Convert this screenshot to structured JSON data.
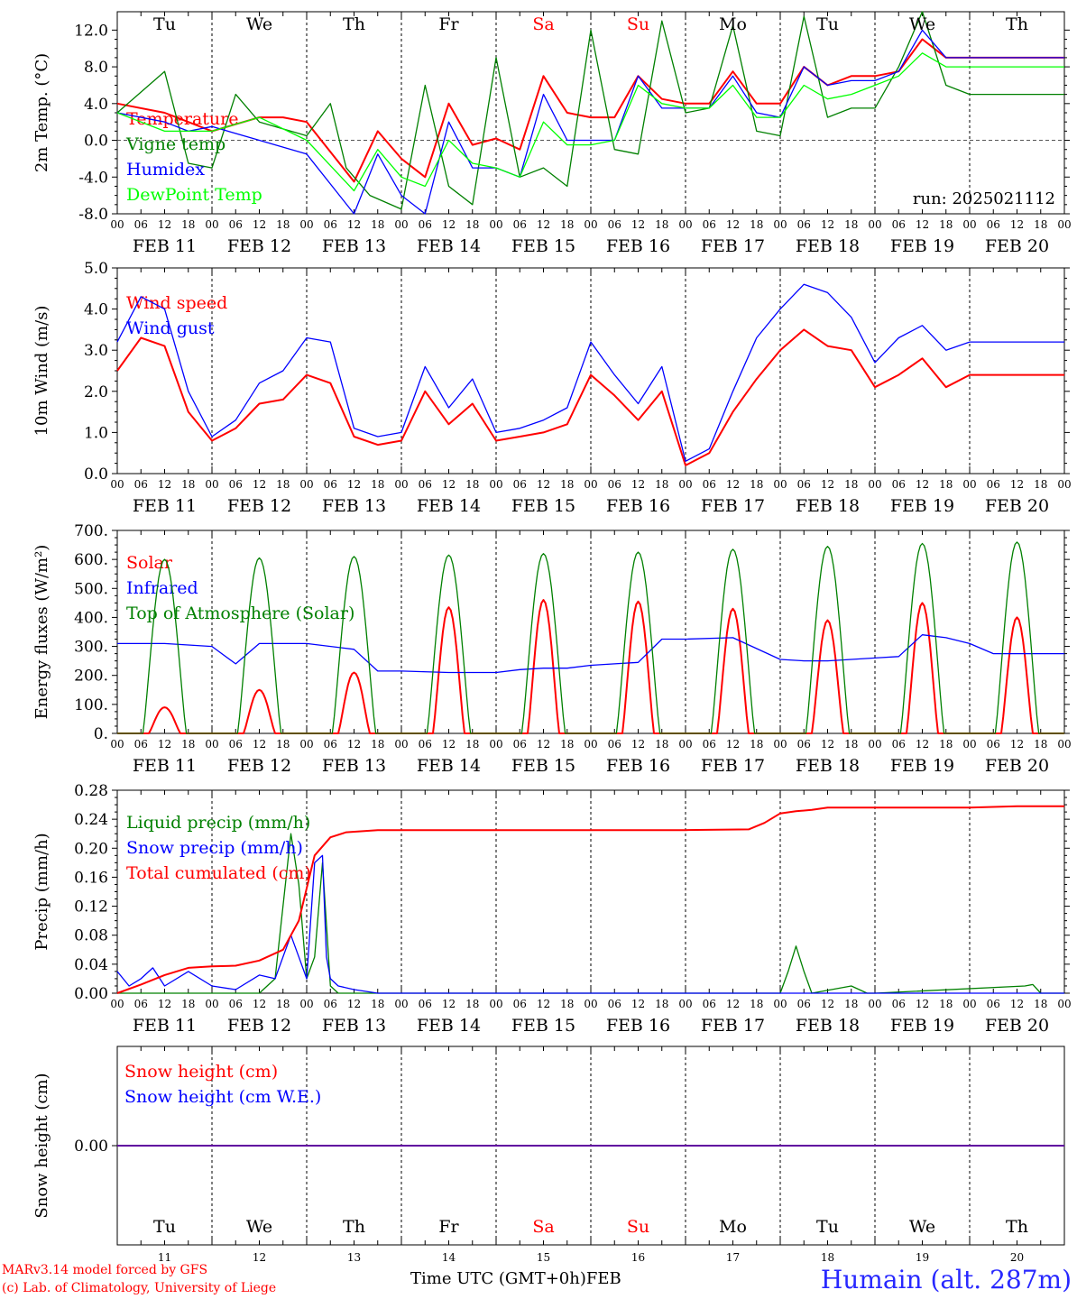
{
  "run_label": "run: 2025021112",
  "x_axis_title": "Time UTC (GMT+0h)",
  "x_axis_month": "FEB",
  "station_label": "Humain (alt. 287m)",
  "credits": [
    "MARv3.14 model forced by GFS",
    "(c) Lab. of Climatology, University of Liege"
  ],
  "days": {
    "weekday": [
      "Tu",
      "We",
      "Th",
      "Fr",
      "Sa",
      "Su",
      "Mo",
      "Tu",
      "We",
      "Th"
    ],
    "weekend_flags": [
      false,
      false,
      false,
      false,
      true,
      true,
      false,
      false,
      false,
      false
    ],
    "date_labels": [
      "FEB 11",
      "FEB 12",
      "FEB 13",
      "FEB 14",
      "FEB 15",
      "FEB 16",
      "FEB 17",
      "FEB 18",
      "FEB 19",
      "FEB 20"
    ],
    "day_numbers": [
      "11",
      "12",
      "13",
      "14",
      "15",
      "16",
      "17",
      "18",
      "19",
      "20"
    ],
    "hour_ticks": [
      "00",
      "06",
      "12",
      "18"
    ]
  },
  "colors": {
    "red": "#ff0000",
    "green": "#008000",
    "blue": "#0000ff",
    "lightgreen": "#00ff00",
    "weekend": "#ff0000"
  },
  "chart_data": [
    {
      "type": "line",
      "ylabel": "2m Temp. (°C)",
      "ylim": [
        -8,
        14
      ],
      "yticks": [
        "-8.0",
        "-4.0",
        "0.0",
        "4.0",
        "8.0",
        "12.0"
      ],
      "x_unit": "hours since FEB 11 00 UTC",
      "legend_position": "top-left",
      "series": [
        {
          "name": "Temperature",
          "color": "#ff0000",
          "x": [
            0,
            12,
            24,
            36,
            42,
            48,
            60,
            66,
            72,
            78,
            84,
            90,
            96,
            102,
            108,
            114,
            120,
            126,
            132,
            138,
            144,
            150,
            156,
            162,
            168,
            174,
            180,
            186,
            192,
            198,
            204,
            210,
            216,
            222,
            228,
            234,
            240
          ],
          "values": [
            4,
            3,
            1,
            2.5,
            2.5,
            2,
            -4.5,
            1,
            -2,
            -4,
            4,
            -0.5,
            0.2,
            -1,
            7,
            3,
            2.5,
            2.5,
            7,
            4.5,
            4,
            4,
            7.5,
            4,
            4,
            8,
            6,
            7,
            7,
            7.5,
            11,
            9,
            9,
            9,
            9,
            9,
            9
          ]
        },
        {
          "name": "Vigne temp",
          "color": "#008000",
          "x": [
            0,
            12,
            18,
            24,
            30,
            36,
            48,
            54,
            58,
            64,
            72,
            78,
            84,
            90,
            96,
            102,
            108,
            114,
            120,
            126,
            132,
            138,
            144,
            150,
            156,
            162,
            168,
            174,
            180,
            186,
            192,
            198,
            204,
            210,
            216,
            222,
            228,
            234,
            240
          ],
          "values": [
            3,
            7.5,
            -2.5,
            -3,
            5,
            2,
            0.5,
            4,
            -3,
            -6,
            -7.5,
            6,
            -5,
            -7,
            9,
            -4,
            -3,
            -5,
            12,
            -1,
            -1.5,
            13,
            3,
            3.5,
            12.5,
            1,
            0.5,
            13.5,
            2.5,
            3.5,
            3.5,
            8,
            14,
            6,
            5,
            5,
            5,
            5,
            5
          ]
        },
        {
          "name": "Humidex",
          "color": "#0000ff",
          "x": [
            0,
            12,
            18,
            24,
            36,
            48,
            60,
            66,
            72,
            78,
            84,
            90,
            96,
            102,
            108,
            114,
            120,
            126,
            132,
            138,
            144,
            150,
            156,
            162,
            168,
            174,
            180,
            186,
            192,
            198,
            204,
            210,
            216,
            222,
            228,
            234,
            240
          ],
          "values": [
            3,
            2,
            1,
            1.5,
            0,
            -1.5,
            -8,
            -1.5,
            -6,
            -8,
            2,
            -3,
            -3,
            -4,
            5,
            0,
            0,
            0,
            7,
            3.5,
            3.5,
            3.5,
            7,
            3,
            2.5,
            8,
            6,
            6.5,
            6.5,
            7.5,
            12,
            9,
            9,
            9,
            9,
            9,
            9
          ]
        },
        {
          "name": "DewPoint Temp",
          "color": "#00ff00",
          "x": [
            0,
            12,
            24,
            36,
            48,
            60,
            66,
            72,
            78,
            84,
            90,
            96,
            102,
            108,
            114,
            120,
            126,
            132,
            138,
            144,
            150,
            156,
            162,
            168,
            174,
            180,
            186,
            192,
            198,
            204,
            210,
            216,
            222,
            228,
            234,
            240
          ],
          "values": [
            3,
            1,
            1,
            2.5,
            0,
            -5.5,
            -1,
            -4,
            -5,
            0,
            -2.5,
            -3,
            -4,
            2,
            -0.5,
            -0.5,
            0,
            6,
            4,
            3.5,
            3.5,
            6,
            2.5,
            2.5,
            6,
            4.5,
            5,
            6,
            7,
            9.5,
            8,
            8,
            8,
            8,
            8,
            8
          ]
        }
      ]
    },
    {
      "type": "line",
      "ylabel": "10m Wind (m/s)",
      "ylim": [
        0,
        5
      ],
      "yticks": [
        "0.0",
        "1.0",
        "2.0",
        "3.0",
        "4.0",
        "5.0"
      ],
      "legend_position": "top-left",
      "series": [
        {
          "name": "Wind speed",
          "color": "#ff0000",
          "x": [
            0,
            6,
            12,
            18,
            24,
            30,
            36,
            42,
            48,
            54,
            60,
            66,
            72,
            78,
            84,
            90,
            96,
            102,
            108,
            114,
            120,
            126,
            132,
            138,
            144,
            150,
            156,
            162,
            168,
            174,
            180,
            186,
            192,
            198,
            204,
            210,
            216,
            222,
            228,
            234,
            240
          ],
          "values": [
            2.5,
            3.3,
            3.1,
            1.5,
            0.8,
            1.1,
            1.7,
            1.8,
            2.4,
            2.2,
            0.9,
            0.7,
            0.8,
            2,
            1.2,
            1.7,
            0.8,
            0.9,
            1,
            1.2,
            2.4,
            1.9,
            1.3,
            2,
            0.2,
            0.5,
            1.5,
            2.3,
            3,
            3.5,
            3.1,
            3,
            2.1,
            2.4,
            2.8,
            2.1,
            2.4,
            2.4,
            2.4,
            2.4,
            2.4
          ]
        },
        {
          "name": "Wind gust",
          "color": "#0000ff",
          "x": [
            0,
            6,
            12,
            18,
            24,
            30,
            36,
            42,
            48,
            54,
            60,
            66,
            72,
            78,
            84,
            90,
            96,
            102,
            108,
            114,
            120,
            126,
            132,
            138,
            144,
            150,
            156,
            162,
            168,
            174,
            180,
            186,
            192,
            198,
            204,
            210,
            216,
            222,
            228,
            234,
            240
          ],
          "values": [
            3.2,
            4.3,
            4,
            2,
            0.9,
            1.3,
            2.2,
            2.5,
            3.3,
            3.2,
            1.1,
            0.9,
            1,
            2.6,
            1.6,
            2.3,
            1,
            1.1,
            1.3,
            1.6,
            3.2,
            2.4,
            1.7,
            2.6,
            0.3,
            0.6,
            2,
            3.3,
            4,
            4.6,
            4.4,
            3.8,
            2.7,
            3.3,
            3.6,
            3,
            3.2,
            3.2,
            3.2,
            3.2,
            3.2
          ]
        }
      ]
    },
    {
      "type": "line",
      "ylabel": "Energy fluxes (W/m²)",
      "ylim": [
        0,
        700
      ],
      "yticks": [
        "0.",
        "100.",
        "200.",
        "300.",
        "400.",
        "500.",
        "600.",
        "700."
      ],
      "legend_position": "top-left",
      "series": [
        {
          "name": "Solar",
          "color": "#ff0000",
          "peaks": [
            90,
            150,
            210,
            435,
            460,
            455,
            430,
            390,
            450,
            400
          ]
        },
        {
          "name": "Infrared",
          "color": "#0000ff",
          "x": [
            0,
            12,
            24,
            30,
            36,
            48,
            60,
            66,
            72,
            84,
            96,
            102,
            108,
            114,
            120,
            126,
            132,
            138,
            144,
            156,
            168,
            174,
            180,
            186,
            192,
            198,
            204,
            210,
            216,
            222,
            228,
            234,
            240
          ],
          "values": [
            310,
            310,
            300,
            240,
            310,
            310,
            290,
            215,
            215,
            210,
            210,
            220,
            225,
            225,
            235,
            240,
            245,
            325,
            325,
            330,
            255,
            250,
            250,
            255,
            260,
            265,
            340,
            330,
            310,
            275,
            275,
            275,
            275
          ]
        },
        {
          "name": "Top of Atmosphere (Solar)",
          "color": "#008000",
          "peaks": [
            600,
            605,
            610,
            615,
            620,
            625,
            635,
            645,
            655,
            660
          ]
        }
      ]
    },
    {
      "type": "line",
      "ylabel": "Precip (mm/h)",
      "ylim": [
        0,
        0.28
      ],
      "yticks": [
        "0.00",
        "0.04",
        "0.08",
        "0.12",
        "0.16",
        "0.20",
        "0.24",
        "0.28"
      ],
      "legend_position": "top-left",
      "series": [
        {
          "name": "Liquid precip (mm/h)",
          "color": "#008000",
          "x": [
            0,
            36,
            40,
            44,
            46,
            48,
            50,
            52,
            54,
            56,
            168,
            170,
            172,
            174,
            176,
            186,
            190,
            192,
            230,
            232,
            234,
            240
          ],
          "values": [
            0,
            0,
            0.02,
            0.22,
            0.15,
            0.02,
            0.05,
            0.18,
            0.01,
            0,
            0,
            0.03,
            0.065,
            0.03,
            0,
            0.01,
            0,
            0,
            0.01,
            0.012,
            0,
            0
          ]
        },
        {
          "name": "Snow precip (mm/h)",
          "color": "#0000ff",
          "x": [
            0,
            3,
            6,
            9,
            12,
            18,
            24,
            30,
            36,
            40,
            44,
            46,
            48,
            50,
            52,
            53,
            54,
            56,
            60,
            66,
            240
          ],
          "values": [
            0.03,
            0.01,
            0.02,
            0.035,
            0.01,
            0.03,
            0.01,
            0.005,
            0.025,
            0.02,
            0.08,
            0.05,
            0.02,
            0.18,
            0.19,
            0.05,
            0.02,
            0.01,
            0.005,
            0,
            0
          ]
        },
        {
          "name": "Total cumulated (cm)",
          "color": "#ff0000",
          "x": [
            0,
            6,
            12,
            18,
            24,
            30,
            36,
            42,
            46,
            50,
            54,
            58,
            66,
            72,
            96,
            120,
            144,
            160,
            164,
            168,
            172,
            176,
            180,
            200,
            216,
            228,
            240
          ],
          "values": [
            0,
            0.012,
            0.025,
            0.035,
            0.037,
            0.038,
            0.045,
            0.06,
            0.1,
            0.19,
            0.215,
            0.222,
            0.225,
            0.225,
            0.225,
            0.225,
            0.225,
            0.226,
            0.235,
            0.248,
            0.251,
            0.253,
            0.256,
            0.256,
            0.256,
            0.258,
            0.258
          ]
        }
      ]
    },
    {
      "type": "line",
      "ylabel": "Snow height (cm)",
      "ylim": [
        -1,
        1
      ],
      "yticks": [
        "0.00"
      ],
      "legend_position": "top-left",
      "series": [
        {
          "name": "Snow height (cm)",
          "color": "#ff0000",
          "x": [
            0,
            240
          ],
          "values": [
            0,
            0
          ]
        },
        {
          "name": "Snow height (cm W.E.)",
          "color": "#0000ff",
          "x": [
            0,
            240
          ],
          "values": [
            0,
            0
          ]
        }
      ]
    }
  ]
}
